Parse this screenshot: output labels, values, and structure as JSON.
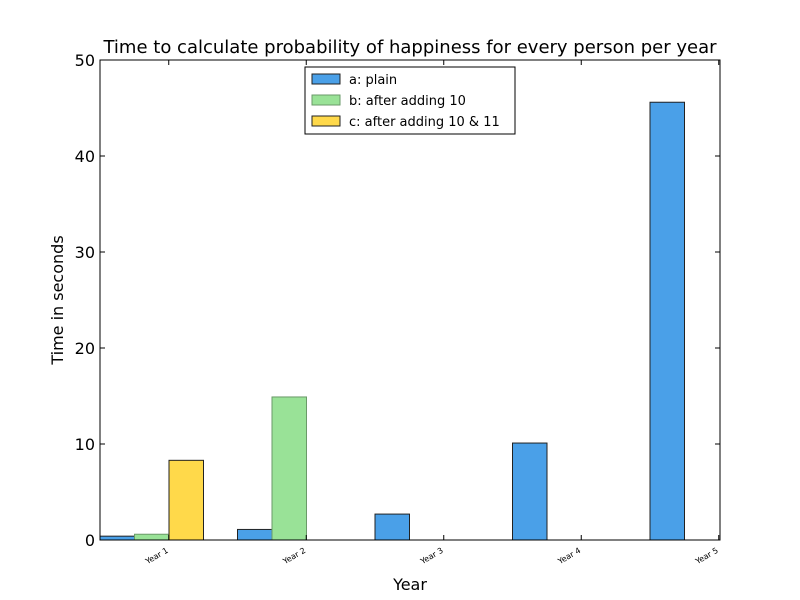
{
  "chart_data": {
    "type": "bar",
    "title": "Time to calculate probability of happiness for every person per year",
    "xlabel": "Year",
    "ylabel": "Time in seconds",
    "ylim": [
      0,
      50
    ],
    "yticks": [
      0,
      10,
      20,
      30,
      40,
      50
    ],
    "categories": [
      "Year 1",
      "Year 2",
      "Year 3",
      "Year 4",
      "Year 5"
    ],
    "grid": false,
    "legend_position": "top-center",
    "series": [
      {
        "name": "a: plain",
        "color": "#4aa0e8",
        "edge": "#222222",
        "values": [
          0.4,
          1.1,
          2.7,
          10.1,
          45.6
        ]
      },
      {
        "name": "b: after adding 10",
        "color": "#99e297",
        "edge": "#6a9a68",
        "values": [
          0.6,
          14.9,
          0,
          0,
          0
        ]
      },
      {
        "name": "c: after adding 10 & 11",
        "color": "#ffd94a",
        "edge": "#222222",
        "values": [
          8.3,
          0,
          0,
          0,
          0
        ]
      }
    ]
  }
}
